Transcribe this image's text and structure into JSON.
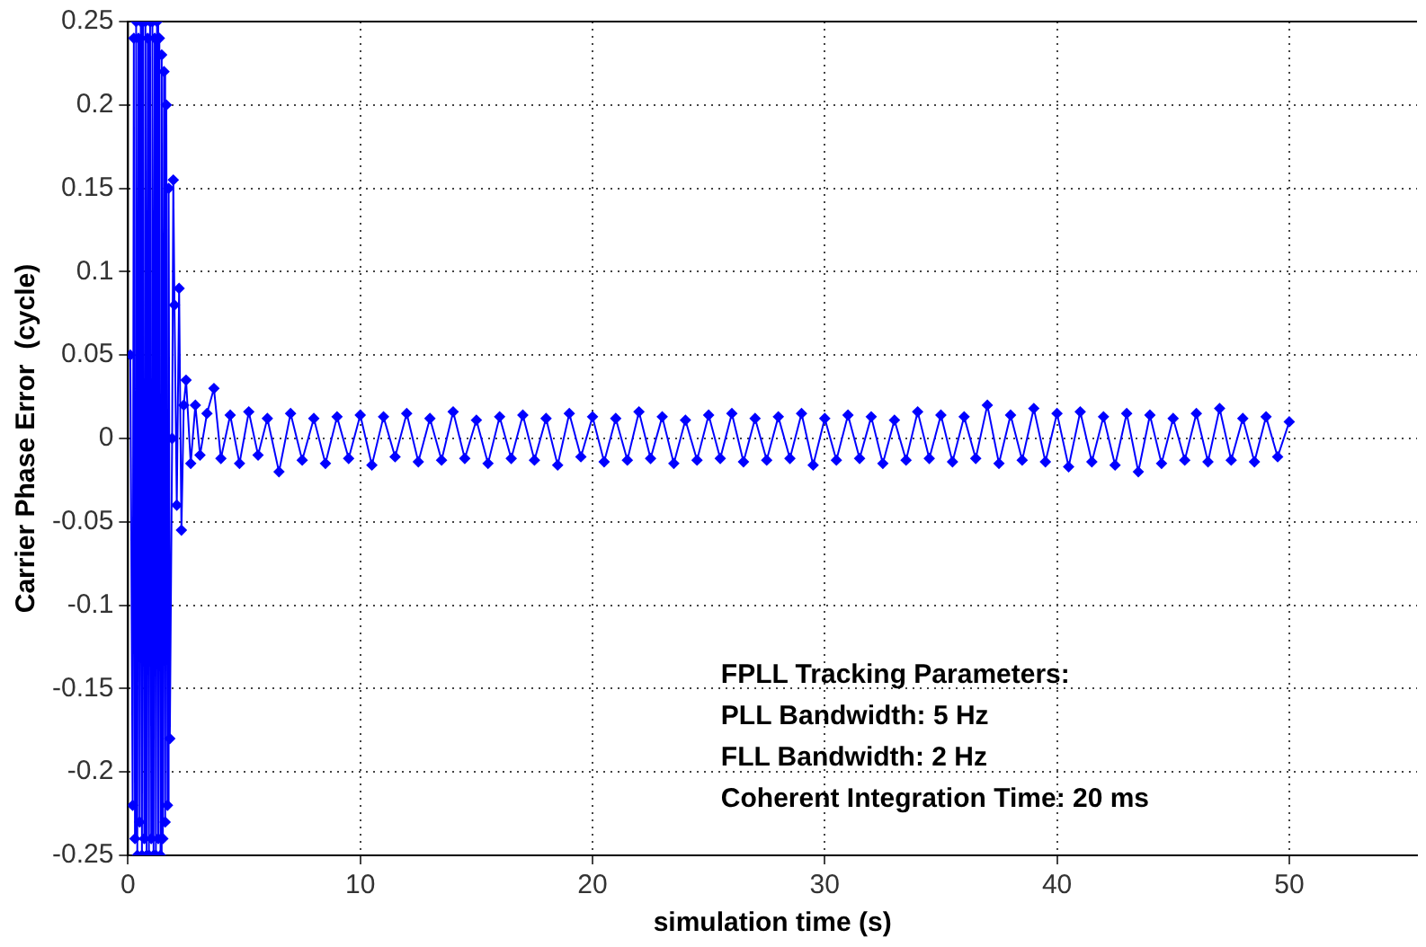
{
  "chart_data": {
    "type": "line",
    "xlabel": "simulation time (s)",
    "ylabel": "Carrier Phase Error  (cycle)",
    "annotations": [
      "FPLL Tracking Parameters:",
      "PLL Bandwidth: 5 Hz",
      "FLL Bandwidth: 2 Hz",
      "Coherent Integration Time: 20 ms"
    ],
    "xlim": [
      0,
      55.5
    ],
    "xticks": [
      0,
      10,
      20,
      30,
      40,
      50
    ],
    "ylim": [
      -0.25,
      0.25
    ],
    "yticks": [
      -0.25,
      -0.2,
      -0.15,
      -0.1,
      -0.05,
      0,
      0.05,
      0.1,
      0.15,
      0.2,
      0.25
    ],
    "grid": true,
    "marker": "diamond",
    "line_style": "solid",
    "series": [
      {
        "color": "#0000ff",
        "x": [
          0.1,
          0.2,
          0.25,
          0.3,
          0.35,
          0.4,
          0.45,
          0.5,
          0.55,
          0.6,
          0.65,
          0.7,
          0.75,
          0.8,
          0.85,
          0.9,
          0.95,
          1.0,
          1.05,
          1.1,
          1.15,
          1.2,
          1.25,
          1.3,
          1.35,
          1.4,
          1.45,
          1.5,
          1.55,
          1.6,
          1.65,
          1.7,
          1.75,
          1.8,
          1.9,
          1.95,
          2.0,
          2.1,
          2.2,
          2.3,
          2.4,
          2.5,
          2.7,
          2.9,
          3.1,
          3.4,
          3.7,
          4.0,
          4.4,
          4.8,
          5.2,
          5.6,
          6.0,
          6.5,
          7.0,
          7.5,
          8.0,
          8.5,
          9.0,
          9.5,
          10,
          10.5,
          11,
          11.5,
          12,
          12.5,
          13,
          13.5,
          14,
          14.5,
          15,
          15.5,
          16,
          16.5,
          17,
          17.5,
          18,
          18.5,
          19,
          19.5,
          20,
          20.5,
          21,
          21.5,
          22,
          22.5,
          23,
          23.5,
          24,
          24.5,
          25,
          25.5,
          26,
          26.5,
          27,
          27.5,
          28,
          28.5,
          29,
          29.5,
          30,
          30.5,
          31,
          31.5,
          32,
          32.5,
          33,
          33.5,
          34,
          34.5,
          35,
          35.5,
          36,
          36.5,
          37,
          37.5,
          38,
          38.5,
          39,
          39.5,
          40,
          40.5,
          41,
          41.5,
          42,
          42.5,
          43,
          43.5,
          44,
          44.5,
          45,
          45.5,
          46,
          46.5,
          47,
          47.5,
          48,
          48.5,
          49,
          49.5,
          50
        ],
        "values": [
          0.05,
          -0.22,
          0.24,
          -0.24,
          0.25,
          -0.25,
          0.24,
          -0.23,
          0.25,
          -0.25,
          0.25,
          -0.24,
          0.25,
          -0.25,
          0.24,
          -0.25,
          0.25,
          -0.24,
          0.25,
          -0.25,
          0.24,
          -0.25,
          0.25,
          -0.24,
          0.24,
          -0.25,
          0.23,
          -0.24,
          0.22,
          -0.23,
          0.2,
          -0.22,
          0.15,
          -0.18,
          0.0,
          0.155,
          0.08,
          -0.04,
          0.09,
          -0.055,
          0.02,
          0.035,
          -0.015,
          0.02,
          -0.01,
          0.015,
          0.03,
          -0.012,
          0.014,
          -0.015,
          0.016,
          -0.01,
          0.012,
          -0.02,
          0.015,
          -0.013,
          0.012,
          -0.015,
          0.013,
          -0.012,
          0.014,
          -0.016,
          0.013,
          -0.011,
          0.015,
          -0.014,
          0.012,
          -0.013,
          0.016,
          -0.012,
          0.011,
          -0.015,
          0.013,
          -0.012,
          0.014,
          -0.013,
          0.012,
          -0.016,
          0.015,
          -0.011,
          0.013,
          -0.014,
          0.012,
          -0.013,
          0.016,
          -0.012,
          0.013,
          -0.015,
          0.011,
          -0.013,
          0.014,
          -0.012,
          0.015,
          -0.014,
          0.012,
          -0.013,
          0.013,
          -0.012,
          0.015,
          -0.016,
          0.012,
          -0.013,
          0.014,
          -0.012,
          0.013,
          -0.015,
          0.011,
          -0.013,
          0.016,
          -0.012,
          0.014,
          -0.014,
          0.013,
          -0.012,
          0.02,
          -0.015,
          0.014,
          -0.013,
          0.018,
          -0.014,
          0.015,
          -0.017,
          0.016,
          -0.014,
          0.013,
          -0.016,
          0.015,
          -0.02,
          0.014,
          -0.015,
          0.012,
          -0.013,
          0.015,
          -0.014,
          0.018,
          -0.013,
          0.012,
          -0.014,
          0.013,
          -0.011,
          0.01
        ]
      }
    ]
  }
}
